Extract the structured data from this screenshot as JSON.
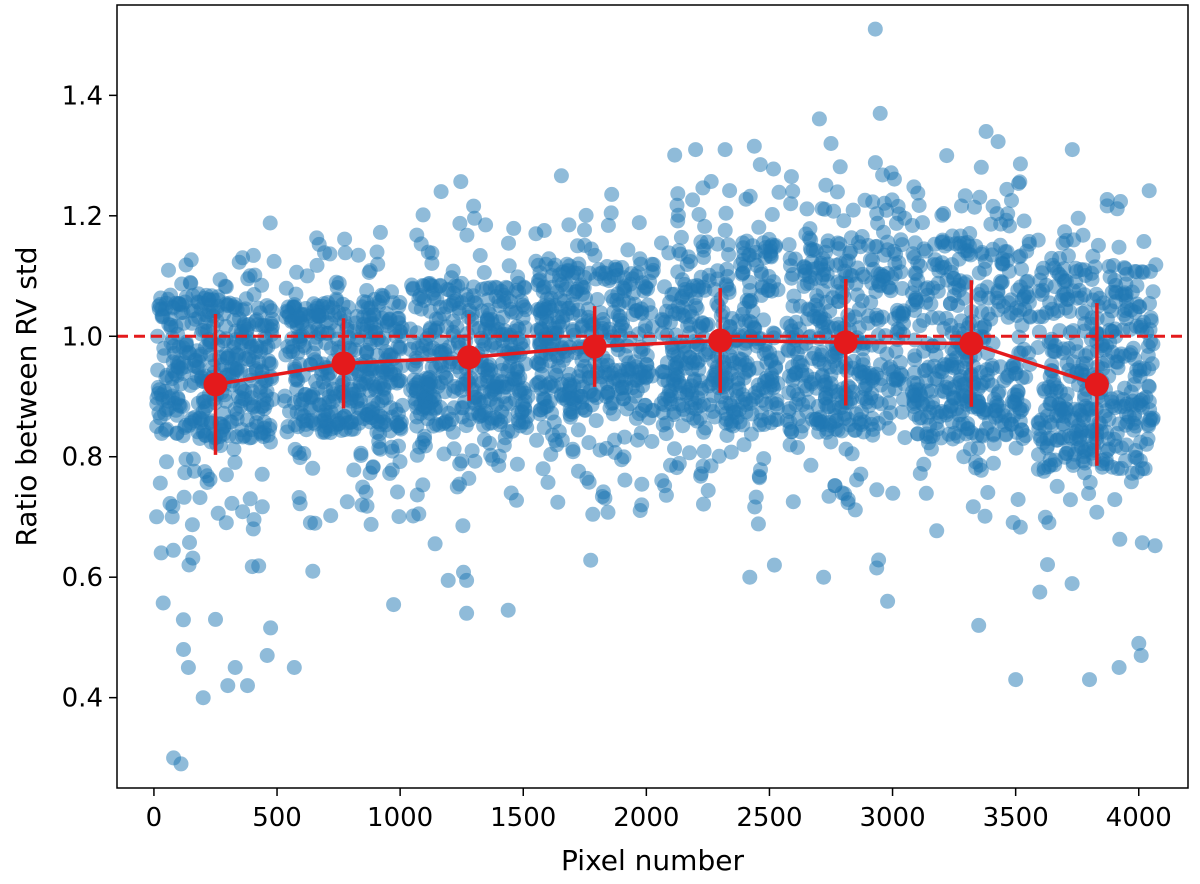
{
  "chart_data": {
    "type": "scatter",
    "title": "",
    "xlabel": "Pixel number",
    "ylabel": "Ratio between RV std",
    "xlim": [
      -150,
      4200
    ],
    "ylim": [
      0.25,
      1.55
    ],
    "xticks": [
      0,
      500,
      1000,
      1500,
      2000,
      2500,
      3000,
      3500,
      4000
    ],
    "yticks": [
      0.4,
      0.6,
      0.8,
      1.0,
      1.2,
      1.4
    ],
    "ytick_labels": [
      "0.4",
      "0.6",
      "0.8",
      "1.0",
      "1.2",
      "1.4"
    ],
    "grid": false,
    "legend": "none",
    "reference_line": {
      "y": 1.0,
      "style": "dashed",
      "color": "#e41a1c"
    },
    "scatter_series": {
      "color": "#1f77b4",
      "alpha": 0.5,
      "bins": [
        {
          "center": 250,
          "half_width": 240,
          "count": 420,
          "core_min": 0.83,
          "core_max": 1.07
        },
        {
          "center": 770,
          "half_width": 240,
          "count": 420,
          "core_min": 0.84,
          "core_max": 1.06
        },
        {
          "center": 1280,
          "half_width": 240,
          "count": 420,
          "core_min": 0.85,
          "core_max": 1.09
        },
        {
          "center": 1790,
          "half_width": 240,
          "count": 420,
          "core_min": 0.87,
          "core_max": 1.12
        },
        {
          "center": 2300,
          "half_width": 240,
          "count": 420,
          "core_min": 0.85,
          "core_max": 1.16
        },
        {
          "center": 2810,
          "half_width": 240,
          "count": 420,
          "core_min": 0.84,
          "core_max": 1.17
        },
        {
          "center": 3320,
          "half_width": 240,
          "count": 420,
          "core_min": 0.83,
          "core_max": 1.16
        },
        {
          "center": 3830,
          "half_width": 240,
          "count": 420,
          "core_min": 0.78,
          "core_max": 1.12
        }
      ],
      "outliers": [
        [
          80,
          0.3
        ],
        [
          110,
          0.29
        ],
        [
          140,
          0.45
        ],
        [
          120,
          0.48
        ],
        [
          300,
          0.42
        ],
        [
          330,
          0.45
        ],
        [
          380,
          0.42
        ],
        [
          460,
          0.47
        ],
        [
          250,
          0.53
        ],
        [
          200,
          0.4
        ],
        [
          570,
          0.45
        ],
        [
          1270,
          0.54
        ],
        [
          2420,
          0.6
        ],
        [
          2520,
          0.62
        ],
        [
          2720,
          0.6
        ],
        [
          2980,
          0.56
        ],
        [
          3350,
          0.52
        ],
        [
          3500,
          0.43
        ],
        [
          3800,
          0.43
        ],
        [
          3920,
          0.45
        ],
        [
          4010,
          0.47
        ],
        [
          4000,
          0.49
        ],
        [
          2930,
          1.51
        ],
        [
          2950,
          1.37
        ],
        [
          3380,
          1.34
        ],
        [
          2200,
          1.31
        ],
        [
          2320,
          1.31
        ],
        [
          3730,
          1.31
        ],
        [
          2750,
          1.32
        ],
        [
          3220,
          1.3
        ]
      ]
    },
    "binned_series": {
      "color": "#e41a1c",
      "x": [
        250,
        770,
        1280,
        1790,
        2300,
        2810,
        3320,
        3830
      ],
      "y": [
        0.92,
        0.955,
        0.965,
        0.983,
        0.993,
        0.99,
        0.988,
        0.92
      ],
      "yerr": [
        0.117,
        0.075,
        0.072,
        0.067,
        0.087,
        0.105,
        0.105,
        0.135
      ]
    }
  }
}
